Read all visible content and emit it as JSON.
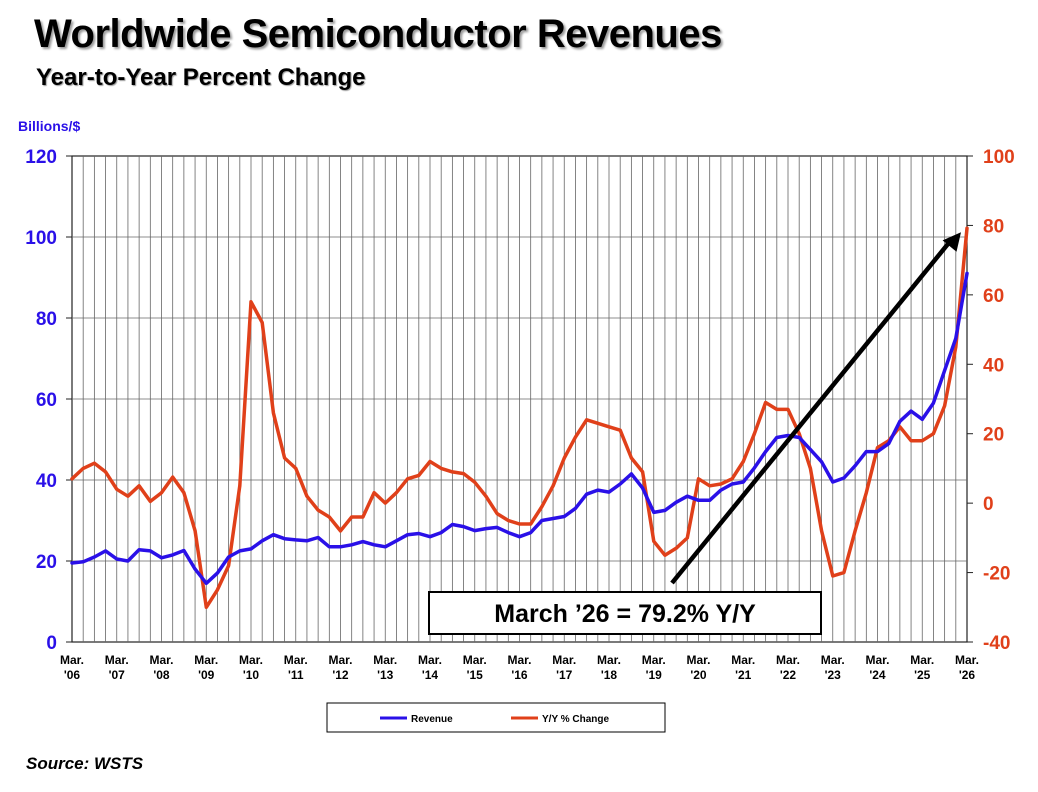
{
  "title": "Worldwide Semiconductor Revenues",
  "subtitle": "Year-to-Year Percent Change",
  "source": "Source: WSTS",
  "callout": "March ’26 = 79.2% Y/Y",
  "colors": {
    "revenue": "#2a10e8",
    "yoy": "#e0401a",
    "grid": "#555555"
  },
  "chart_data": {
    "type": "line",
    "title": "Worldwide Semiconductor Revenues",
    "subtitle": "Year-to-Year Percent Change",
    "ylabel": "Billions/$",
    "ylim": [
      0,
      120
    ],
    "y_ticks": [
      "0",
      "20",
      "40",
      "60",
      "80",
      "100",
      "120"
    ],
    "y2lim": [
      -40,
      100
    ],
    "y2_ticks": [
      "-40",
      "-20",
      "0",
      "20",
      "40",
      "60",
      "80",
      "100"
    ],
    "x_ticks": [
      [
        "Mar.",
        "'06"
      ],
      [
        "Mar.",
        "'07"
      ],
      [
        "Mar.",
        "'08"
      ],
      [
        "Mar.",
        "'09"
      ],
      [
        "Mar.",
        "'10"
      ],
      [
        "Mar.",
        "'11"
      ],
      [
        "Mar.",
        "'12"
      ],
      [
        "Mar.",
        "'13"
      ],
      [
        "Mar.",
        "'14"
      ],
      [
        "Mar.",
        "'15"
      ],
      [
        "Mar.",
        "'16"
      ],
      [
        "Mar.",
        "'17"
      ],
      [
        "Mar.",
        "'18"
      ],
      [
        "Mar.",
        "'19"
      ],
      [
        "Mar.",
        "'20"
      ],
      [
        "Mar.",
        "'21"
      ],
      [
        "Mar.",
        "'22"
      ],
      [
        "Mar.",
        "'23"
      ],
      [
        "Mar.",
        "'24"
      ],
      [
        "Mar.",
        "'25"
      ],
      [
        "Mar.",
        "'26"
      ]
    ],
    "grid": true,
    "legend_position": "bottom",
    "series": [
      {
        "name": "Revenue",
        "axis": "left",
        "points": [
          [
            "2006-03",
            19.5
          ],
          [
            "2006-06",
            19.8
          ],
          [
            "2006-09",
            21.0
          ],
          [
            "2006-12",
            22.5
          ],
          [
            "2007-03",
            20.5
          ],
          [
            "2007-06",
            20.0
          ],
          [
            "2007-09",
            22.8
          ],
          [
            "2007-12",
            22.5
          ],
          [
            "2008-03",
            20.8
          ],
          [
            "2008-06",
            21.5
          ],
          [
            "2008-09",
            22.6
          ],
          [
            "2008-12",
            18.0
          ],
          [
            "2009-03",
            14.5
          ],
          [
            "2009-06",
            17.0
          ],
          [
            "2009-09",
            21.0
          ],
          [
            "2009-12",
            22.5
          ],
          [
            "2010-03",
            23.0
          ],
          [
            "2010-06",
            25.0
          ],
          [
            "2010-09",
            26.5
          ],
          [
            "2010-12",
            25.5
          ],
          [
            "2011-03",
            25.2
          ],
          [
            "2011-06",
            25.0
          ],
          [
            "2011-09",
            25.8
          ],
          [
            "2011-12",
            23.5
          ],
          [
            "2012-03",
            23.5
          ],
          [
            "2012-06",
            24.0
          ],
          [
            "2012-09",
            24.8
          ],
          [
            "2012-12",
            24.0
          ],
          [
            "2013-03",
            23.5
          ],
          [
            "2013-06",
            25.0
          ],
          [
            "2013-09",
            26.5
          ],
          [
            "2013-12",
            26.8
          ],
          [
            "2014-03",
            26.0
          ],
          [
            "2014-06",
            27.0
          ],
          [
            "2014-09",
            29.0
          ],
          [
            "2014-12",
            28.5
          ],
          [
            "2015-03",
            27.5
          ],
          [
            "2015-06",
            28.0
          ],
          [
            "2015-09",
            28.3
          ],
          [
            "2015-12",
            27.0
          ],
          [
            "2016-03",
            26.0
          ],
          [
            "2016-06",
            27.0
          ],
          [
            "2016-09",
            30.0
          ],
          [
            "2016-12",
            30.5
          ],
          [
            "2017-03",
            31.0
          ],
          [
            "2017-06",
            33.0
          ],
          [
            "2017-09",
            36.5
          ],
          [
            "2017-12",
            37.5
          ],
          [
            "2018-03",
            37.0
          ],
          [
            "2018-06",
            39.0
          ],
          [
            "2018-09",
            41.5
          ],
          [
            "2018-12",
            38.0
          ],
          [
            "2019-03",
            32.0
          ],
          [
            "2019-06",
            32.5
          ],
          [
            "2019-09",
            34.5
          ],
          [
            "2019-12",
            36.0
          ],
          [
            "2020-03",
            35.0
          ],
          [
            "2020-06",
            35.0
          ],
          [
            "2020-09",
            37.5
          ],
          [
            "2020-12",
            39.0
          ],
          [
            "2021-03",
            39.5
          ],
          [
            "2021-06",
            43.0
          ],
          [
            "2021-09",
            47.0
          ],
          [
            "2021-12",
            50.5
          ],
          [
            "2022-03",
            51.0
          ],
          [
            "2022-06",
            50.5
          ],
          [
            "2022-09",
            47.5
          ],
          [
            "2022-12",
            44.5
          ],
          [
            "2023-03",
            39.5
          ],
          [
            "2023-06",
            40.5
          ],
          [
            "2023-09",
            43.5
          ],
          [
            "2023-12",
            47.0
          ],
          [
            "2024-03",
            47.0
          ],
          [
            "2024-06",
            49.0
          ],
          [
            "2024-09",
            54.5
          ],
          [
            "2024-12",
            57.0
          ],
          [
            "2025-03",
            55.0
          ],
          [
            "2025-06",
            59.0
          ],
          [
            "2025-09",
            67.0
          ],
          [
            "2025-12",
            75.0
          ],
          [
            "2026-03",
            91.0
          ]
        ]
      },
      {
        "name": "Y/Y % Change",
        "axis": "right",
        "points": [
          [
            "2006-03",
            7.0
          ],
          [
            "2006-06",
            10.0
          ],
          [
            "2006-09",
            11.5
          ],
          [
            "2006-12",
            9.0
          ],
          [
            "2007-03",
            4.0
          ],
          [
            "2007-06",
            2.0
          ],
          [
            "2007-09",
            5.0
          ],
          [
            "2007-12",
            0.5
          ],
          [
            "2008-03",
            3.0
          ],
          [
            "2008-06",
            7.5
          ],
          [
            "2008-09",
            3.0
          ],
          [
            "2008-12",
            -8.0
          ],
          [
            "2009-03",
            -30.0
          ],
          [
            "2009-06",
            -25.0
          ],
          [
            "2009-09",
            -18.0
          ],
          [
            "2009-12",
            5.0
          ],
          [
            "2010-03",
            58.0
          ],
          [
            "2010-06",
            52.0
          ],
          [
            "2010-09",
            26.0
          ],
          [
            "2010-12",
            13.0
          ],
          [
            "2011-03",
            10.0
          ],
          [
            "2011-06",
            2.0
          ],
          [
            "2011-09",
            -2.0
          ],
          [
            "2011-12",
            -4.0
          ],
          [
            "2012-03",
            -8.0
          ],
          [
            "2012-06",
            -4.0
          ],
          [
            "2012-09",
            -4.0
          ],
          [
            "2012-12",
            3.0
          ],
          [
            "2013-03",
            0.0
          ],
          [
            "2013-06",
            3.0
          ],
          [
            "2013-09",
            7.0
          ],
          [
            "2013-12",
            8.0
          ],
          [
            "2014-03",
            12.0
          ],
          [
            "2014-06",
            10.0
          ],
          [
            "2014-09",
            9.0
          ],
          [
            "2014-12",
            8.5
          ],
          [
            "2015-03",
            6.0
          ],
          [
            "2015-06",
            2.0
          ],
          [
            "2015-09",
            -3.0
          ],
          [
            "2015-12",
            -5.0
          ],
          [
            "2016-03",
            -6.0
          ],
          [
            "2016-06",
            -6.0
          ],
          [
            "2016-09",
            -1.0
          ],
          [
            "2016-12",
            5.0
          ],
          [
            "2017-03",
            13.0
          ],
          [
            "2017-06",
            19.0
          ],
          [
            "2017-09",
            24.0
          ],
          [
            "2017-12",
            23.0
          ],
          [
            "2018-03",
            22.0
          ],
          [
            "2018-06",
            21.0
          ],
          [
            "2018-09",
            13.0
          ],
          [
            "2018-12",
            9.0
          ],
          [
            "2019-03",
            -11.0
          ],
          [
            "2019-06",
            -15.0
          ],
          [
            "2019-09",
            -13.0
          ],
          [
            "2019-12",
            -10.0
          ],
          [
            "2020-03",
            7.0
          ],
          [
            "2020-06",
            5.0
          ],
          [
            "2020-09",
            5.5
          ],
          [
            "2020-12",
            7.0
          ],
          [
            "2021-03",
            12.0
          ],
          [
            "2021-06",
            20.0
          ],
          [
            "2021-09",
            29.0
          ],
          [
            "2021-12",
            27.0
          ],
          [
            "2022-03",
            27.0
          ],
          [
            "2022-06",
            20.0
          ],
          [
            "2022-09",
            10.0
          ],
          [
            "2022-12",
            -8.0
          ],
          [
            "2023-03",
            -21.0
          ],
          [
            "2023-06",
            -20.0
          ],
          [
            "2023-09",
            -8.0
          ],
          [
            "2023-12",
            3.0
          ],
          [
            "2024-03",
            16.0
          ],
          [
            "2024-06",
            18.0
          ],
          [
            "2024-09",
            22.0
          ],
          [
            "2024-12",
            18.0
          ],
          [
            "2025-03",
            18.0
          ],
          [
            "2025-06",
            20.0
          ],
          [
            "2025-09",
            28.0
          ],
          [
            "2025-12",
            45.0
          ],
          [
            "2026-03",
            79.2
          ]
        ]
      }
    ],
    "annotation": {
      "text": "March ’26 = 79.2% Y/Y",
      "points_to": [
        "2026-03",
        79.2
      ]
    }
  }
}
